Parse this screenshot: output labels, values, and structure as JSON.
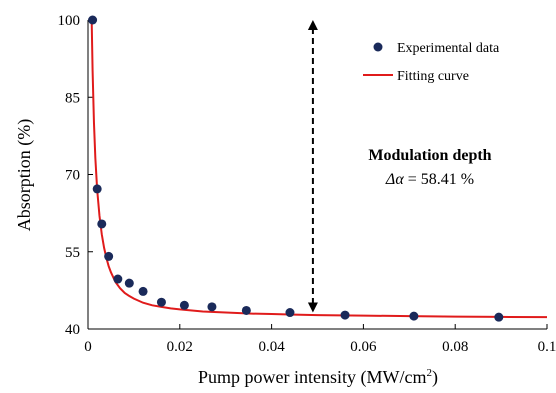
{
  "chart_data": {
    "type": "scatter",
    "xlabel": "Pump power intensity (MW/cm",
    "xlabel_sup": "2",
    "xlabel_tail": ")",
    "ylabel": "Absorption (%)",
    "xlim": [
      0,
      0.1
    ],
    "ylim": [
      40,
      100
    ],
    "x_ticks": [
      0,
      0.02,
      0.04,
      0.06,
      0.08,
      0.1
    ],
    "x_tick_labels": [
      "0",
      "0.02",
      "0.04",
      "0.06",
      "0.08",
      "0.1"
    ],
    "y_ticks": [
      40,
      55,
      70,
      85,
      100
    ],
    "y_tick_labels": [
      "40",
      "55",
      "70",
      "85",
      "100"
    ],
    "grid": false,
    "legend_position": "top-right",
    "series": [
      {
        "name": "Experimental data",
        "kind": "points",
        "color": "#1a2a5a",
        "x": [
          0.001,
          0.002,
          0.003,
          0.0045,
          0.0065,
          0.009,
          0.012,
          0.016,
          0.021,
          0.027,
          0.0345,
          0.044,
          0.056,
          0.071,
          0.0895
        ],
        "y": [
          100.0,
          67.2,
          60.4,
          54.1,
          49.7,
          48.9,
          47.3,
          45.2,
          44.6,
          44.3,
          43.6,
          43.2,
          42.7,
          42.5,
          42.3
        ]
      },
      {
        "name": "Fitting curve",
        "kind": "line",
        "color": "#e01b1b",
        "x": [
          0.0008,
          0.001,
          0.0013,
          0.0016,
          0.002,
          0.0025,
          0.003,
          0.0035,
          0.004,
          0.0045,
          0.005,
          0.006,
          0.007,
          0.008,
          0.009,
          0.01,
          0.012,
          0.014,
          0.016,
          0.018,
          0.02,
          0.025,
          0.03,
          0.035,
          0.04,
          0.045,
          0.05,
          0.06,
          0.07,
          0.08,
          0.09,
          0.1
        ],
        "y": [
          100.0,
          90.2,
          80.0,
          73.2,
          67.0,
          62.0,
          58.4,
          55.8,
          53.8,
          52.2,
          51.0,
          49.1,
          47.9,
          47.0,
          46.4,
          45.9,
          45.1,
          44.6,
          44.3,
          44.0,
          43.8,
          43.4,
          43.2,
          43.0,
          42.9,
          42.8,
          42.7,
          42.6,
          42.5,
          42.4,
          42.35,
          42.3
        ]
      }
    ],
    "annotation": {
      "title": "Modulation depth",
      "symbol": "Δα",
      "expression": " = 58.41 %",
      "arrow_x": 0.049,
      "arrow_y_top": 100,
      "arrow_y_bottom": 43.2
    }
  }
}
